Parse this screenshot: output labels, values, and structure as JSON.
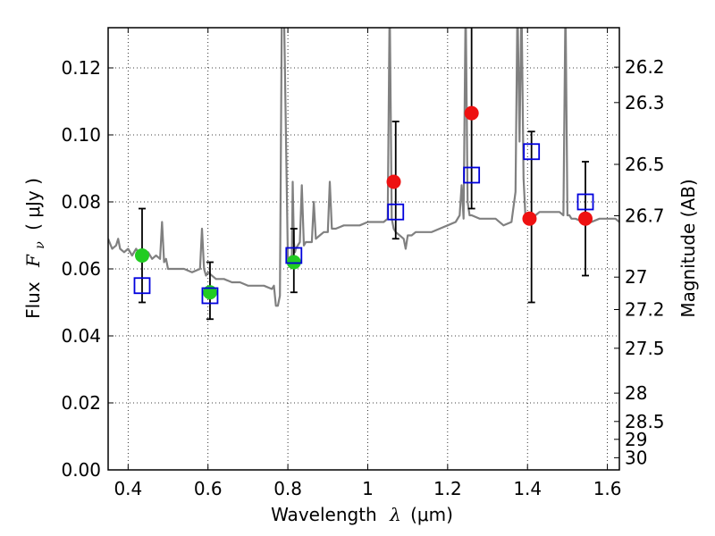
{
  "chart_data": {
    "type": "scatter",
    "xlabel": "Wavelength",
    "xlabel_symbol": "λ",
    "xlabel_unit": "(μm)",
    "ylabel": "Flux",
    "ylabel_symbol": "F",
    "ylabel_subscript": "ν",
    "ylabel_unit": "( μJy )",
    "ylabel_right": "Magnitude (AB)",
    "xlim": [
      0.35,
      1.63
    ],
    "ylim": [
      0.0,
      0.132
    ],
    "grid": true,
    "x_ticks": [
      0.4,
      0.6,
      0.8,
      1.0,
      1.2,
      1.4,
      1.6
    ],
    "x_tick_labels": [
      "0.4",
      "0.6",
      "0.8",
      "1",
      "1.2",
      "1.4",
      "1.6"
    ],
    "y_ticks": [
      0.0,
      0.02,
      0.04,
      0.06,
      0.08,
      0.1,
      0.12
    ],
    "y_tick_labels": [
      "0.00",
      "0.02",
      "0.04",
      "0.06",
      "0.08",
      "0.10",
      "0.12"
    ],
    "mag_ticks": [
      26.2,
      26.3,
      26.5,
      26.7,
      27,
      27.2,
      27.5,
      28,
      28.5,
      29,
      30
    ],
    "mag_tick_labels": [
      "26.2",
      "26.3",
      "26.5",
      "26.7",
      "27",
      "27.2",
      "27.5",
      "28",
      "28.5",
      "29",
      "30"
    ],
    "series": [
      {
        "name": "model_spectrum",
        "kind": "line",
        "color": "#808080",
        "x": [
          0.35,
          0.36,
          0.37,
          0.375,
          0.38,
          0.39,
          0.4,
          0.41,
          0.42,
          0.43,
          0.44,
          0.45,
          0.46,
          0.47,
          0.48,
          0.485,
          0.49,
          0.495,
          0.5,
          0.52,
          0.54,
          0.56,
          0.58,
          0.585,
          0.59,
          0.595,
          0.6,
          0.62,
          0.64,
          0.66,
          0.68,
          0.7,
          0.72,
          0.74,
          0.76,
          0.765,
          0.77,
          0.775,
          0.78,
          0.785,
          0.79,
          0.8,
          0.81,
          0.812,
          0.815,
          0.818,
          0.82,
          0.83,
          0.835,
          0.84,
          0.845,
          0.85,
          0.86,
          0.865,
          0.87,
          0.88,
          0.89,
          0.9,
          0.905,
          0.91,
          0.915,
          0.92,
          0.94,
          0.96,
          0.98,
          1.0,
          1.02,
          1.04,
          1.05,
          1.055,
          1.06,
          1.065,
          1.07,
          1.08,
          1.09,
          1.095,
          1.1,
          1.105,
          1.11,
          1.12,
          1.14,
          1.16,
          1.18,
          1.2,
          1.22,
          1.23,
          1.235,
          1.24,
          1.245,
          1.25,
          1.255,
          1.26,
          1.28,
          1.3,
          1.32,
          1.34,
          1.36,
          1.37,
          1.375,
          1.38,
          1.385,
          1.39,
          1.395,
          1.4,
          1.405,
          1.41,
          1.42,
          1.43,
          1.44,
          1.45,
          1.46,
          1.47,
          1.48,
          1.49,
          1.495,
          1.5,
          1.505,
          1.51,
          1.52,
          1.54,
          1.56,
          1.58,
          1.6,
          1.62,
          1.63
        ],
        "y": [
          0.069,
          0.066,
          0.067,
          0.069,
          0.066,
          0.065,
          0.066,
          0.064,
          0.066,
          0.064,
          0.065,
          0.065,
          0.063,
          0.064,
          0.063,
          0.074,
          0.062,
          0.063,
          0.06,
          0.06,
          0.06,
          0.059,
          0.06,
          0.072,
          0.06,
          0.058,
          0.059,
          0.057,
          0.057,
          0.056,
          0.056,
          0.055,
          0.055,
          0.055,
          0.054,
          0.055,
          0.049,
          0.049,
          0.052,
          0.14,
          0.14,
          0.063,
          0.064,
          0.086,
          0.068,
          0.065,
          0.066,
          0.068,
          0.085,
          0.067,
          0.068,
          0.068,
          0.068,
          0.08,
          0.069,
          0.07,
          0.071,
          0.071,
          0.086,
          0.072,
          0.072,
          0.072,
          0.073,
          0.073,
          0.073,
          0.074,
          0.074,
          0.074,
          0.075,
          0.14,
          0.075,
          0.072,
          0.071,
          0.07,
          0.069,
          0.066,
          0.07,
          0.07,
          0.07,
          0.071,
          0.071,
          0.071,
          0.072,
          0.073,
          0.074,
          0.076,
          0.085,
          0.075,
          0.14,
          0.08,
          0.076,
          0.076,
          0.075,
          0.075,
          0.075,
          0.073,
          0.074,
          0.083,
          0.14,
          0.098,
          0.14,
          0.087,
          0.075,
          0.075,
          0.074,
          0.076,
          0.076,
          0.077,
          0.077,
          0.077,
          0.077,
          0.077,
          0.077,
          0.076,
          0.14,
          0.076,
          0.076,
          0.075,
          0.075,
          0.074,
          0.074,
          0.075,
          0.075,
          0.075,
          0.074
        ]
      },
      {
        "name": "observed_green",
        "kind": "marker",
        "marker": "circle",
        "color": "#22cc22",
        "x": [
          0.435,
          0.605,
          0.815
        ],
        "y": [
          0.064,
          0.053,
          0.062
        ]
      },
      {
        "name": "observed_red",
        "kind": "marker",
        "marker": "circle",
        "color": "#ee1111",
        "x": [
          1.065,
          1.26,
          1.405,
          1.545
        ],
        "y": [
          0.086,
          0.1065,
          0.075,
          0.075
        ]
      },
      {
        "name": "model_photometry",
        "kind": "marker",
        "marker": "square_open",
        "color": "#0000dd",
        "x": [
          0.435,
          0.605,
          0.815,
          1.07,
          1.26,
          1.41,
          1.545
        ],
        "y": [
          0.055,
          0.052,
          0.064,
          0.077,
          0.088,
          0.095,
          0.08
        ],
        "yerr_low": [
          0.05,
          0.045,
          0.053,
          0.069,
          0.078,
          0.05,
          0.058
        ],
        "yerr_high": [
          0.078,
          0.062,
          0.072,
          0.104,
          0.135,
          0.101,
          0.092
        ]
      }
    ]
  }
}
